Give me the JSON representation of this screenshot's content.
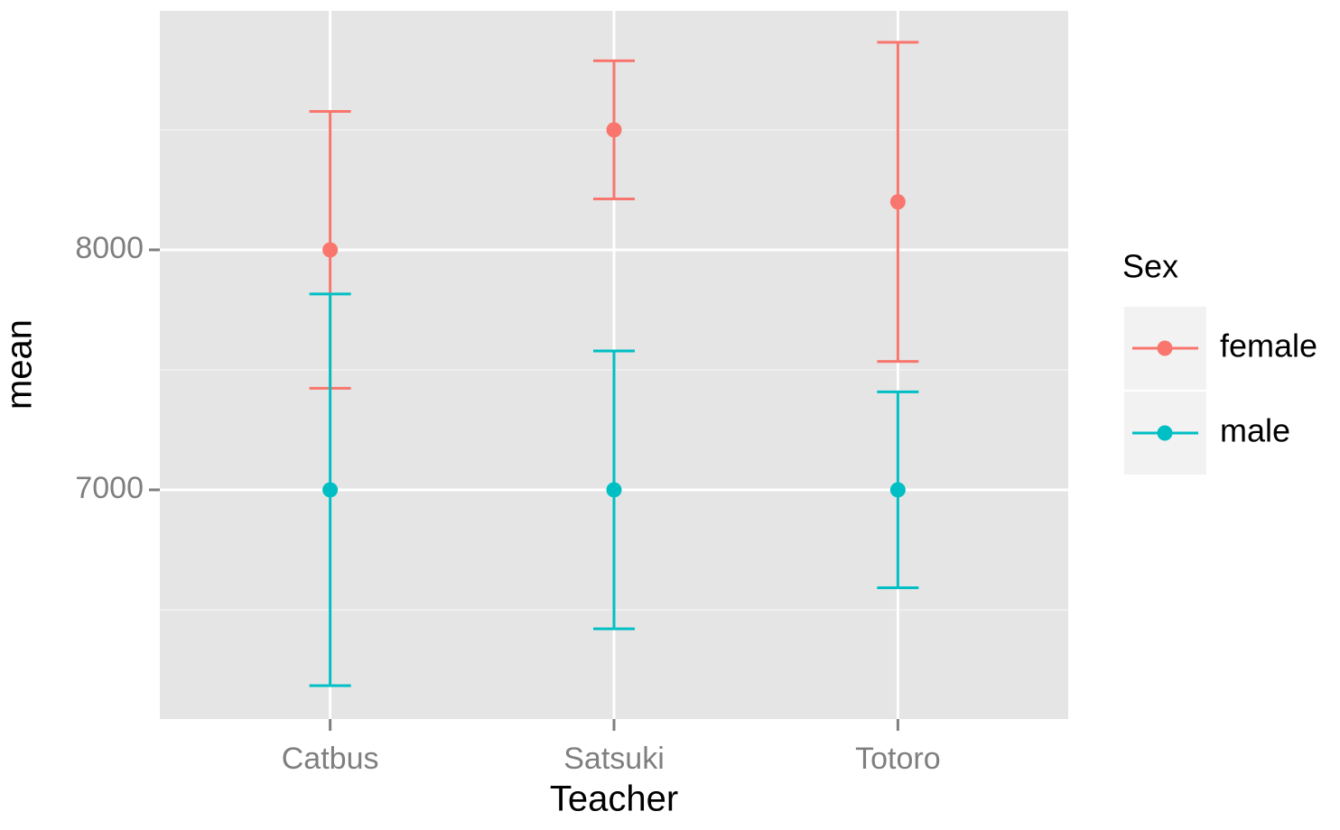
{
  "chart_data": {
    "type": "errorbar",
    "x_label": "Teacher",
    "y_label": "mean",
    "categories": [
      "Catbus",
      "Satsuki",
      "Totoro"
    ],
    "series": [
      {
        "name": "female",
        "color": "#f8766d",
        "values": [
          8000,
          8500,
          8200
        ],
        "errors": [
          577,
          288,
          665
        ]
      },
      {
        "name": "male",
        "color": "#00bfc4",
        "values": [
          7000,
          7000,
          7000
        ],
        "errors": [
          816,
          579,
          408
        ]
      }
    ],
    "legend_title": "Sex",
    "legend_position": "right",
    "ylim": [
      6045,
      8996
    ],
    "yticks": [
      7000,
      8000
    ],
    "minor_grid": [
      6500,
      7500,
      8500
    ],
    "grid": true
  }
}
